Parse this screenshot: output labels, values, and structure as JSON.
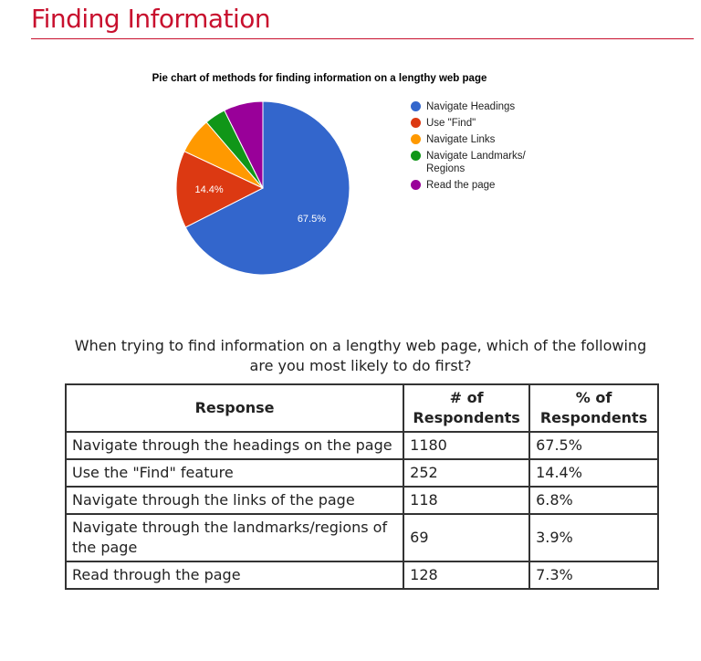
{
  "page": {
    "heading": "Finding Information",
    "question": "When trying to find information on a lengthy web page, which of the following are you most likely to do first?"
  },
  "chart_data": {
    "type": "pie",
    "title": "Pie chart of methods for finding information on a lengthy web page",
    "categories": [
      "Navigate Headings",
      "Use \"Find\"",
      "Navigate Links",
      "Navigate Landmarks/ Regions",
      "Read the page"
    ],
    "values": [
      1180,
      252,
      118,
      69,
      128
    ],
    "data_labels": [
      "67.5%",
      "14.4%",
      "",
      "",
      ""
    ],
    "colors": [
      "#3366cc",
      "#dc3912",
      "#ff9900",
      "#109618",
      "#990099"
    ],
    "legend_position": "right"
  },
  "table": {
    "headers": [
      "Response",
      "# of Respondents",
      "% of Respondents"
    ],
    "rows": [
      [
        "Navigate through the headings on the page",
        "1180",
        "67.5%"
      ],
      [
        "Use the \"Find\" feature",
        "252",
        "14.4%"
      ],
      [
        "Navigate through the links of the page",
        "118",
        "6.8%"
      ],
      [
        "Navigate through the landmarks/regions of the page",
        "69",
        "3.9%"
      ],
      [
        "Read through the page",
        "128",
        "7.3%"
      ]
    ]
  }
}
